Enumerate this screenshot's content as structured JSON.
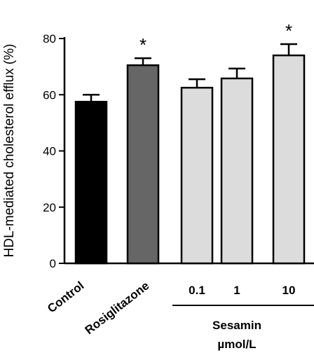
{
  "chart_data": {
    "type": "bar",
    "ylabel": "HDL-mediated cholesterol efflux (%)",
    "ylim": [
      0,
      80
    ],
    "yticks": [
      0,
      20,
      40,
      60,
      80
    ],
    "categories": [
      "Control",
      "Rosiglitazone",
      "0.1",
      "1",
      "10"
    ],
    "values": [
      57.5,
      70.5,
      62.5,
      65.8,
      74.0
    ],
    "errors": [
      2.5,
      2.5,
      3.0,
      3.5,
      4.0
    ],
    "significance": [
      "",
      "*",
      "",
      "",
      "*"
    ],
    "colors": [
      "#000000",
      "#666666",
      "#dcdcdc",
      "#dcdcdc",
      "#dcdcdc"
    ],
    "group": {
      "name": "Sesamin",
      "unit": "µmol/L",
      "members": [
        "0.1",
        "1",
        "10"
      ]
    },
    "grid": false,
    "legend": "none"
  }
}
